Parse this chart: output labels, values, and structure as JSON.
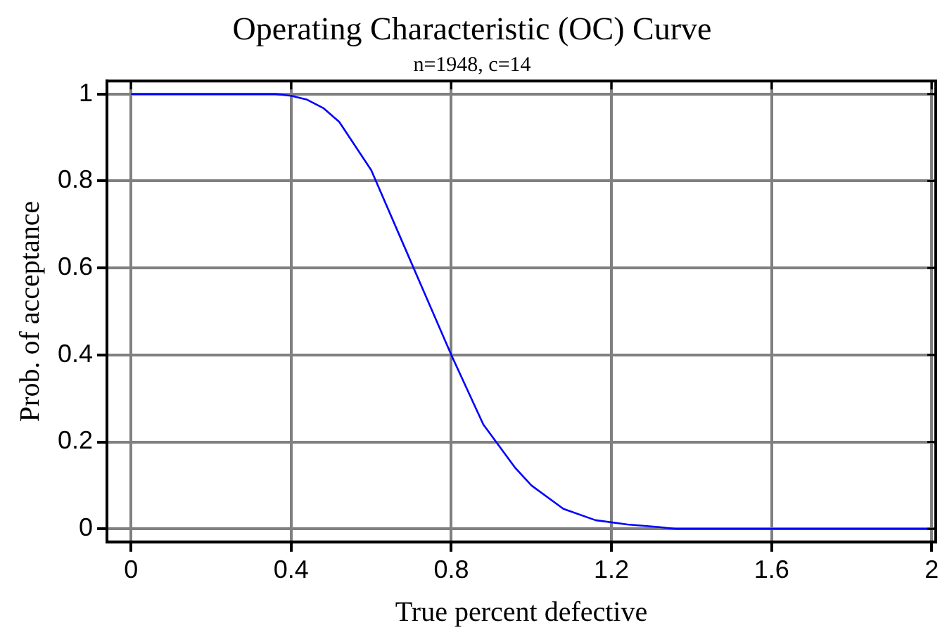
{
  "chart_data": {
    "type": "line",
    "title": "Operating Characteristic (OC) Curve",
    "subtitle": "n=1948, c=14",
    "xlabel": "True percent defective",
    "ylabel": "Prob. of acceptance",
    "x": [
      0,
      0.36,
      0.4,
      0.44,
      0.48,
      0.52,
      0.6,
      0.68,
      0.72,
      0.8,
      0.88,
      0.96,
      1.0,
      1.08,
      1.16,
      1.24,
      1.32,
      1.36,
      2.0
    ],
    "series": [
      {
        "color": "#0000ff",
        "values": [
          1,
          1,
          0.996,
          0.987,
          0.968,
          0.936,
          0.825,
          0.655,
          0.57,
          0.4,
          0.24,
          0.14,
          0.1,
          0.046,
          0.02,
          0.01,
          0.004,
          0,
          0
        ]
      }
    ],
    "xlim": [
      -0.06,
      2.01
    ],
    "ylim": [
      -0.03,
      1.03
    ],
    "xticks": [
      0,
      0.4,
      0.8,
      1.2,
      1.6,
      2
    ],
    "yticks": [
      0,
      0.2,
      0.4,
      0.6,
      0.8,
      1
    ],
    "grid": true,
    "legend": false,
    "marker": "none",
    "line_style": "solid"
  }
}
